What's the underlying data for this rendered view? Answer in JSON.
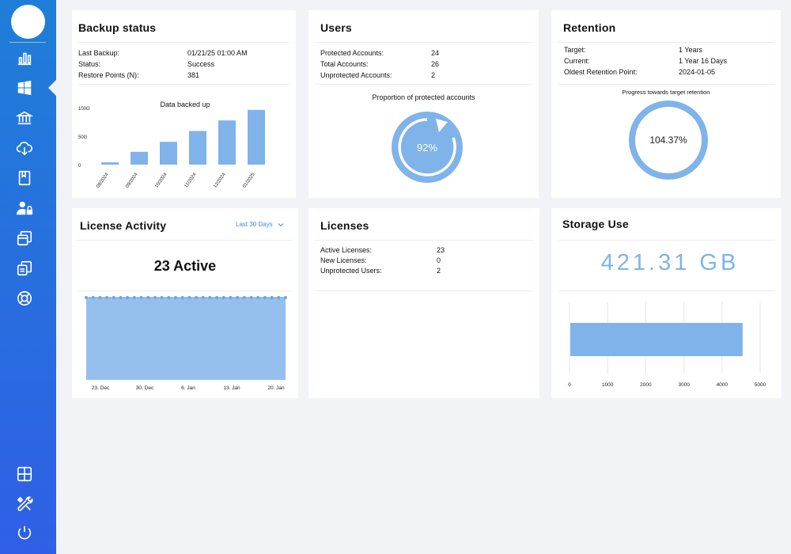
{
  "sidebar": {
    "icons": [
      "bar-chart-icon",
      "windows-icon",
      "bank-icon",
      "cloud-download-icon",
      "book-icon",
      "user-lock-icon",
      "windows-stack-icon",
      "copy-icon",
      "lifebuoy-icon",
      "grid-icon",
      "tools-icon",
      "power-icon"
    ],
    "accent": "#2f6fe0"
  },
  "backup": {
    "title": "Backup status",
    "rows": [
      {
        "label": "Last Backup:",
        "value": "01/21/25 01:00 AM"
      },
      {
        "label": "Status:",
        "value": "Success"
      },
      {
        "label": "Restore Points (N):",
        "value": "381"
      }
    ]
  },
  "users": {
    "title": "Users",
    "rows": [
      {
        "label": "Protected Accounts:",
        "value": "24"
      },
      {
        "label": "Total Accounts:",
        "value": "26"
      },
      {
        "label": "Unprotected Accounts:",
        "value": "2"
      }
    ],
    "gauge_title": "Proportion of protected accounts",
    "gauge_value": "92%"
  },
  "retention": {
    "title": "Retention",
    "rows": [
      {
        "label": "Target:",
        "value": "1 Years"
      },
      {
        "label": "Current:",
        "value": "1 Year 16 Days"
      },
      {
        "label": "Oldest Retention Point:",
        "value": "2024-01-05"
      }
    ],
    "gauge_title": "Progress towards target retention",
    "gauge_value": "104.37%"
  },
  "license_activity": {
    "title": "License Activity",
    "period": "Last 30 Days",
    "headline": "23 Active"
  },
  "licenses": {
    "title": "Licenses",
    "rows": [
      {
        "label": "Active Licenses:",
        "value": "23"
      },
      {
        "label": "New Licenses:",
        "value": "0"
      },
      {
        "label": "Unprotected Users:",
        "value": "2"
      }
    ]
  },
  "storage": {
    "title": "Storage Use",
    "headline": "421.31 GB"
  },
  "chart_data": [
    {
      "type": "bar",
      "title": "Data backed up",
      "categories": [
        "08/2024",
        "09/2024",
        "10/2024",
        "11/2024",
        "12/2024",
        "01/2025"
      ],
      "values": [
        8,
        45,
        80,
        118,
        155,
        192
      ],
      "ylim": [
        0,
        200
      ],
      "yticks": [
        "0",
        "50G",
        "100G"
      ],
      "color": "#7fb3ea"
    },
    {
      "type": "area",
      "title": "",
      "x_ticks": [
        "23. Dec",
        "30. Dec",
        "6. Jan",
        "13. Jan",
        "20. Jan"
      ],
      "values": [
        23,
        23,
        23,
        23,
        23,
        23,
        23,
        23,
        23,
        23,
        23,
        23,
        23,
        23,
        23,
        23,
        23,
        23,
        23,
        23,
        23,
        23,
        23,
        23,
        23,
        23,
        23,
        23,
        23,
        23
      ],
      "ylim": [
        0,
        23
      ],
      "color": "#8fbcec"
    },
    {
      "type": "bar",
      "orientation": "horizontal",
      "title": "",
      "categories": [
        ""
      ],
      "values": [
        4520
      ],
      "xlim": [
        0,
        5000
      ],
      "xticks": [
        "0",
        "1000",
        "2000",
        "3000",
        "4000",
        "5000"
      ],
      "color": "#7fb3ea"
    }
  ]
}
